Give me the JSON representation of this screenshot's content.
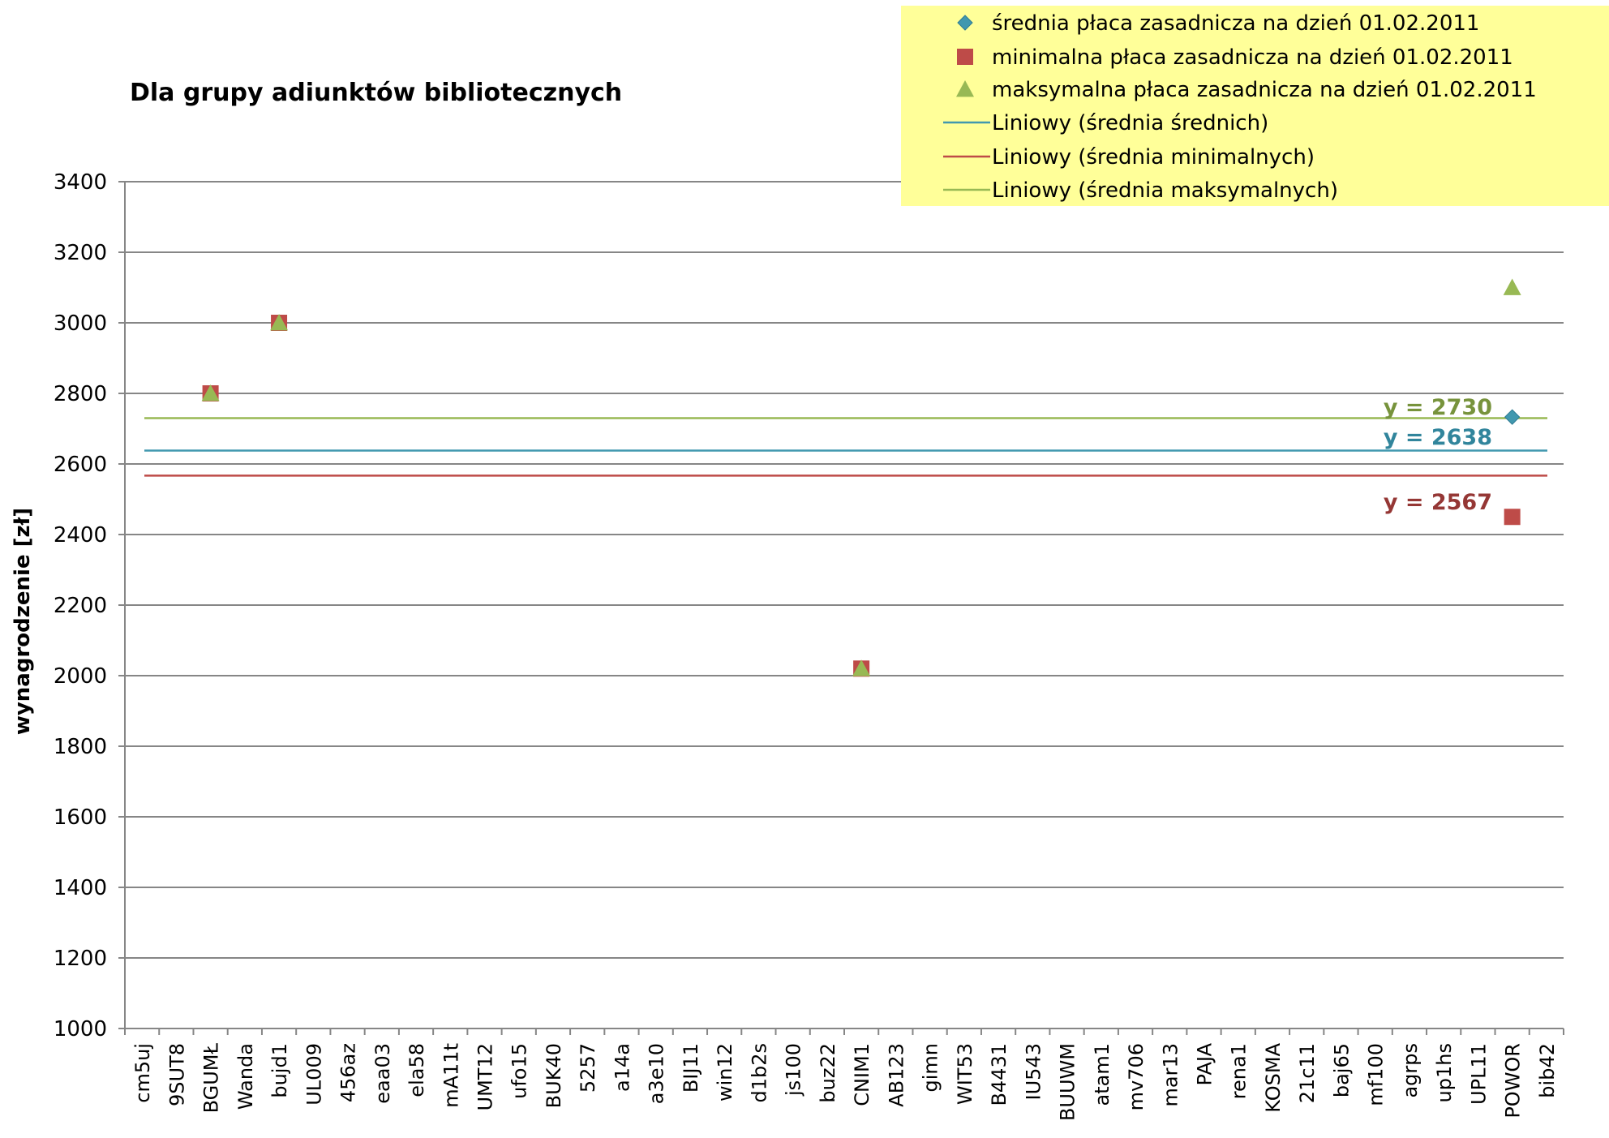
{
  "chart_data": {
    "type": "scatter",
    "title": "Dla grupy adiunktów bibliotecznych",
    "xlabel": "",
    "ylabel": "wynagrodzenie [zł]",
    "ylim": [
      1000,
      3400
    ],
    "yticks": [
      1000,
      1200,
      1400,
      1600,
      1800,
      2000,
      2200,
      2400,
      2600,
      2800,
      3000,
      3200,
      3400
    ],
    "grid": true,
    "legend_position": "top-right",
    "categories": [
      "cm5uj",
      "9SUT8",
      "BGUMŁ",
      "Wanda",
      "bujd1",
      "UL009",
      "456az",
      "eaa03",
      "ela58",
      "mA11t",
      "UMT12",
      "ufo15",
      "BUK40",
      "5257",
      "a14a",
      "a3e10",
      "BIJ11",
      "win12",
      "d1b2s",
      "js100",
      "buz22",
      "CNIM1",
      "AB123",
      "gimn",
      "WIT53",
      "B4431",
      "IU543",
      "BUUWM",
      "atam1",
      "mv706",
      "mar13",
      "PAJA",
      "rena1",
      "KOSMA",
      "21c11",
      "baj65",
      "mf100",
      "agrps",
      "up1hs",
      "UPL11",
      "POWOR",
      "bib42"
    ],
    "series": [
      {
        "name": "średnia płaca zasadnicza na dzień 01.02.2011",
        "marker": "diamond",
        "color": "#4198AF",
        "points": [
          {
            "category": "BGUMŁ",
            "value": 2800
          },
          {
            "category": "bujd1",
            "value": 3000
          },
          {
            "category": "CNIM1",
            "value": 2020
          },
          {
            "category": "POWOR",
            "value": 2733
          }
        ]
      },
      {
        "name": "minimalna płaca zasadnicza na dzień 01.02.2011",
        "marker": "square",
        "color": "#BE4B48",
        "points": [
          {
            "category": "BGUMŁ",
            "value": 2800
          },
          {
            "category": "bujd1",
            "value": 3000
          },
          {
            "category": "CNIM1",
            "value": 2020
          },
          {
            "category": "POWOR",
            "value": 2450
          }
        ]
      },
      {
        "name": "maksymalna płaca zasadnicza na dzień 01.02.2011",
        "marker": "triangle",
        "color": "#98B954",
        "points": [
          {
            "category": "BGUMŁ",
            "value": 2800
          },
          {
            "category": "bujd1",
            "value": 3000
          },
          {
            "category": "CNIM1",
            "value": 2020
          },
          {
            "category": "POWOR",
            "value": 3100
          }
        ]
      }
    ],
    "trendlines": [
      {
        "name": "Liniowy (średnia średnich)",
        "value": 2638,
        "label": "y = 2638",
        "color": "#4198AF",
        "label_color": "#31859C"
      },
      {
        "name": "Liniowy (średnia minimalnych)",
        "value": 2567,
        "label": "y = 2567",
        "color": "#BE4B48",
        "label_color": "#953735"
      },
      {
        "name": "Liniowy (średnia maksymalnych)",
        "value": 2730,
        "label": "y = 2730",
        "color": "#98B954",
        "label_color": "#77933C"
      }
    ],
    "legend_background": "#FFFF99"
  }
}
